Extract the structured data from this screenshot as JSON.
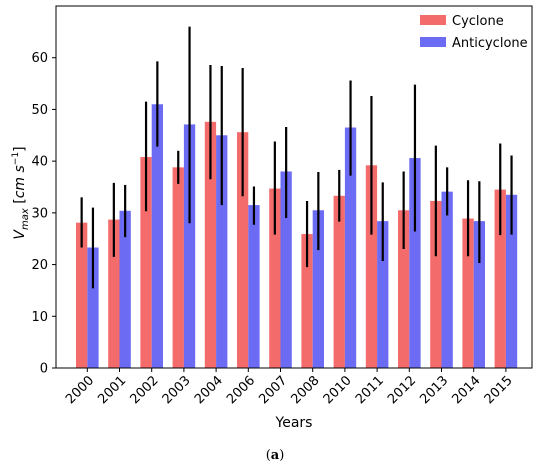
{
  "chart_data": {
    "type": "bar",
    "title": "",
    "xlabel": "Years",
    "ylabel_base": "V",
    "ylabel_sub": "max",
    "ylabel_unit_open": " [",
    "ylabel_unit_cm": "cm s",
    "ylabel_unit_exp": "−1",
    "ylabel_unit_close": "]",
    "caption": "(a)",
    "ylim": [
      0,
      70
    ],
    "yticks": [
      "0",
      "10",
      "20",
      "30",
      "40",
      "50",
      "60"
    ],
    "grid": false,
    "legend_position": "top-right",
    "categories": [
      "2000",
      "2001",
      "2002",
      "2003",
      "2004",
      "2006",
      "2007",
      "2008",
      "2010",
      "2011",
      "2012",
      "2013",
      "2014",
      "2015"
    ],
    "series": [
      {
        "name": "Cyclone",
        "color": "#f46b6b",
        "values": [
          28.1,
          28.7,
          40.8,
          38.8,
          47.6,
          45.6,
          34.7,
          25.9,
          33.3,
          39.2,
          30.5,
          32.3,
          28.9,
          34.5
        ],
        "err_low": [
          23.3,
          21.5,
          30.3,
          35.6,
          36.5,
          33.2,
          25.8,
          19.5,
          28.3,
          25.8,
          23.0,
          21.6,
          21.6,
          25.7
        ],
        "err_high": [
          33.0,
          35.8,
          51.5,
          42.0,
          58.6,
          58.0,
          43.8,
          32.3,
          38.3,
          52.6,
          38.0,
          43.0,
          36.3,
          43.4
        ]
      },
      {
        "name": "Anticyclone",
        "color": "#6b6bf4",
        "values": [
          23.3,
          30.4,
          51.0,
          47.1,
          45.0,
          31.5,
          38.0,
          30.5,
          46.5,
          28.4,
          40.6,
          34.1,
          28.4,
          33.5
        ],
        "err_low": [
          15.4,
          25.3,
          42.8,
          28.0,
          31.5,
          27.7,
          29.0,
          22.8,
          37.2,
          20.7,
          26.4,
          29.5,
          20.3,
          25.8
        ],
        "err_high": [
          31.0,
          35.4,
          59.3,
          66.0,
          58.4,
          35.1,
          46.6,
          37.9,
          55.6,
          35.9,
          54.8,
          38.8,
          36.1,
          41.1
        ]
      }
    ]
  }
}
